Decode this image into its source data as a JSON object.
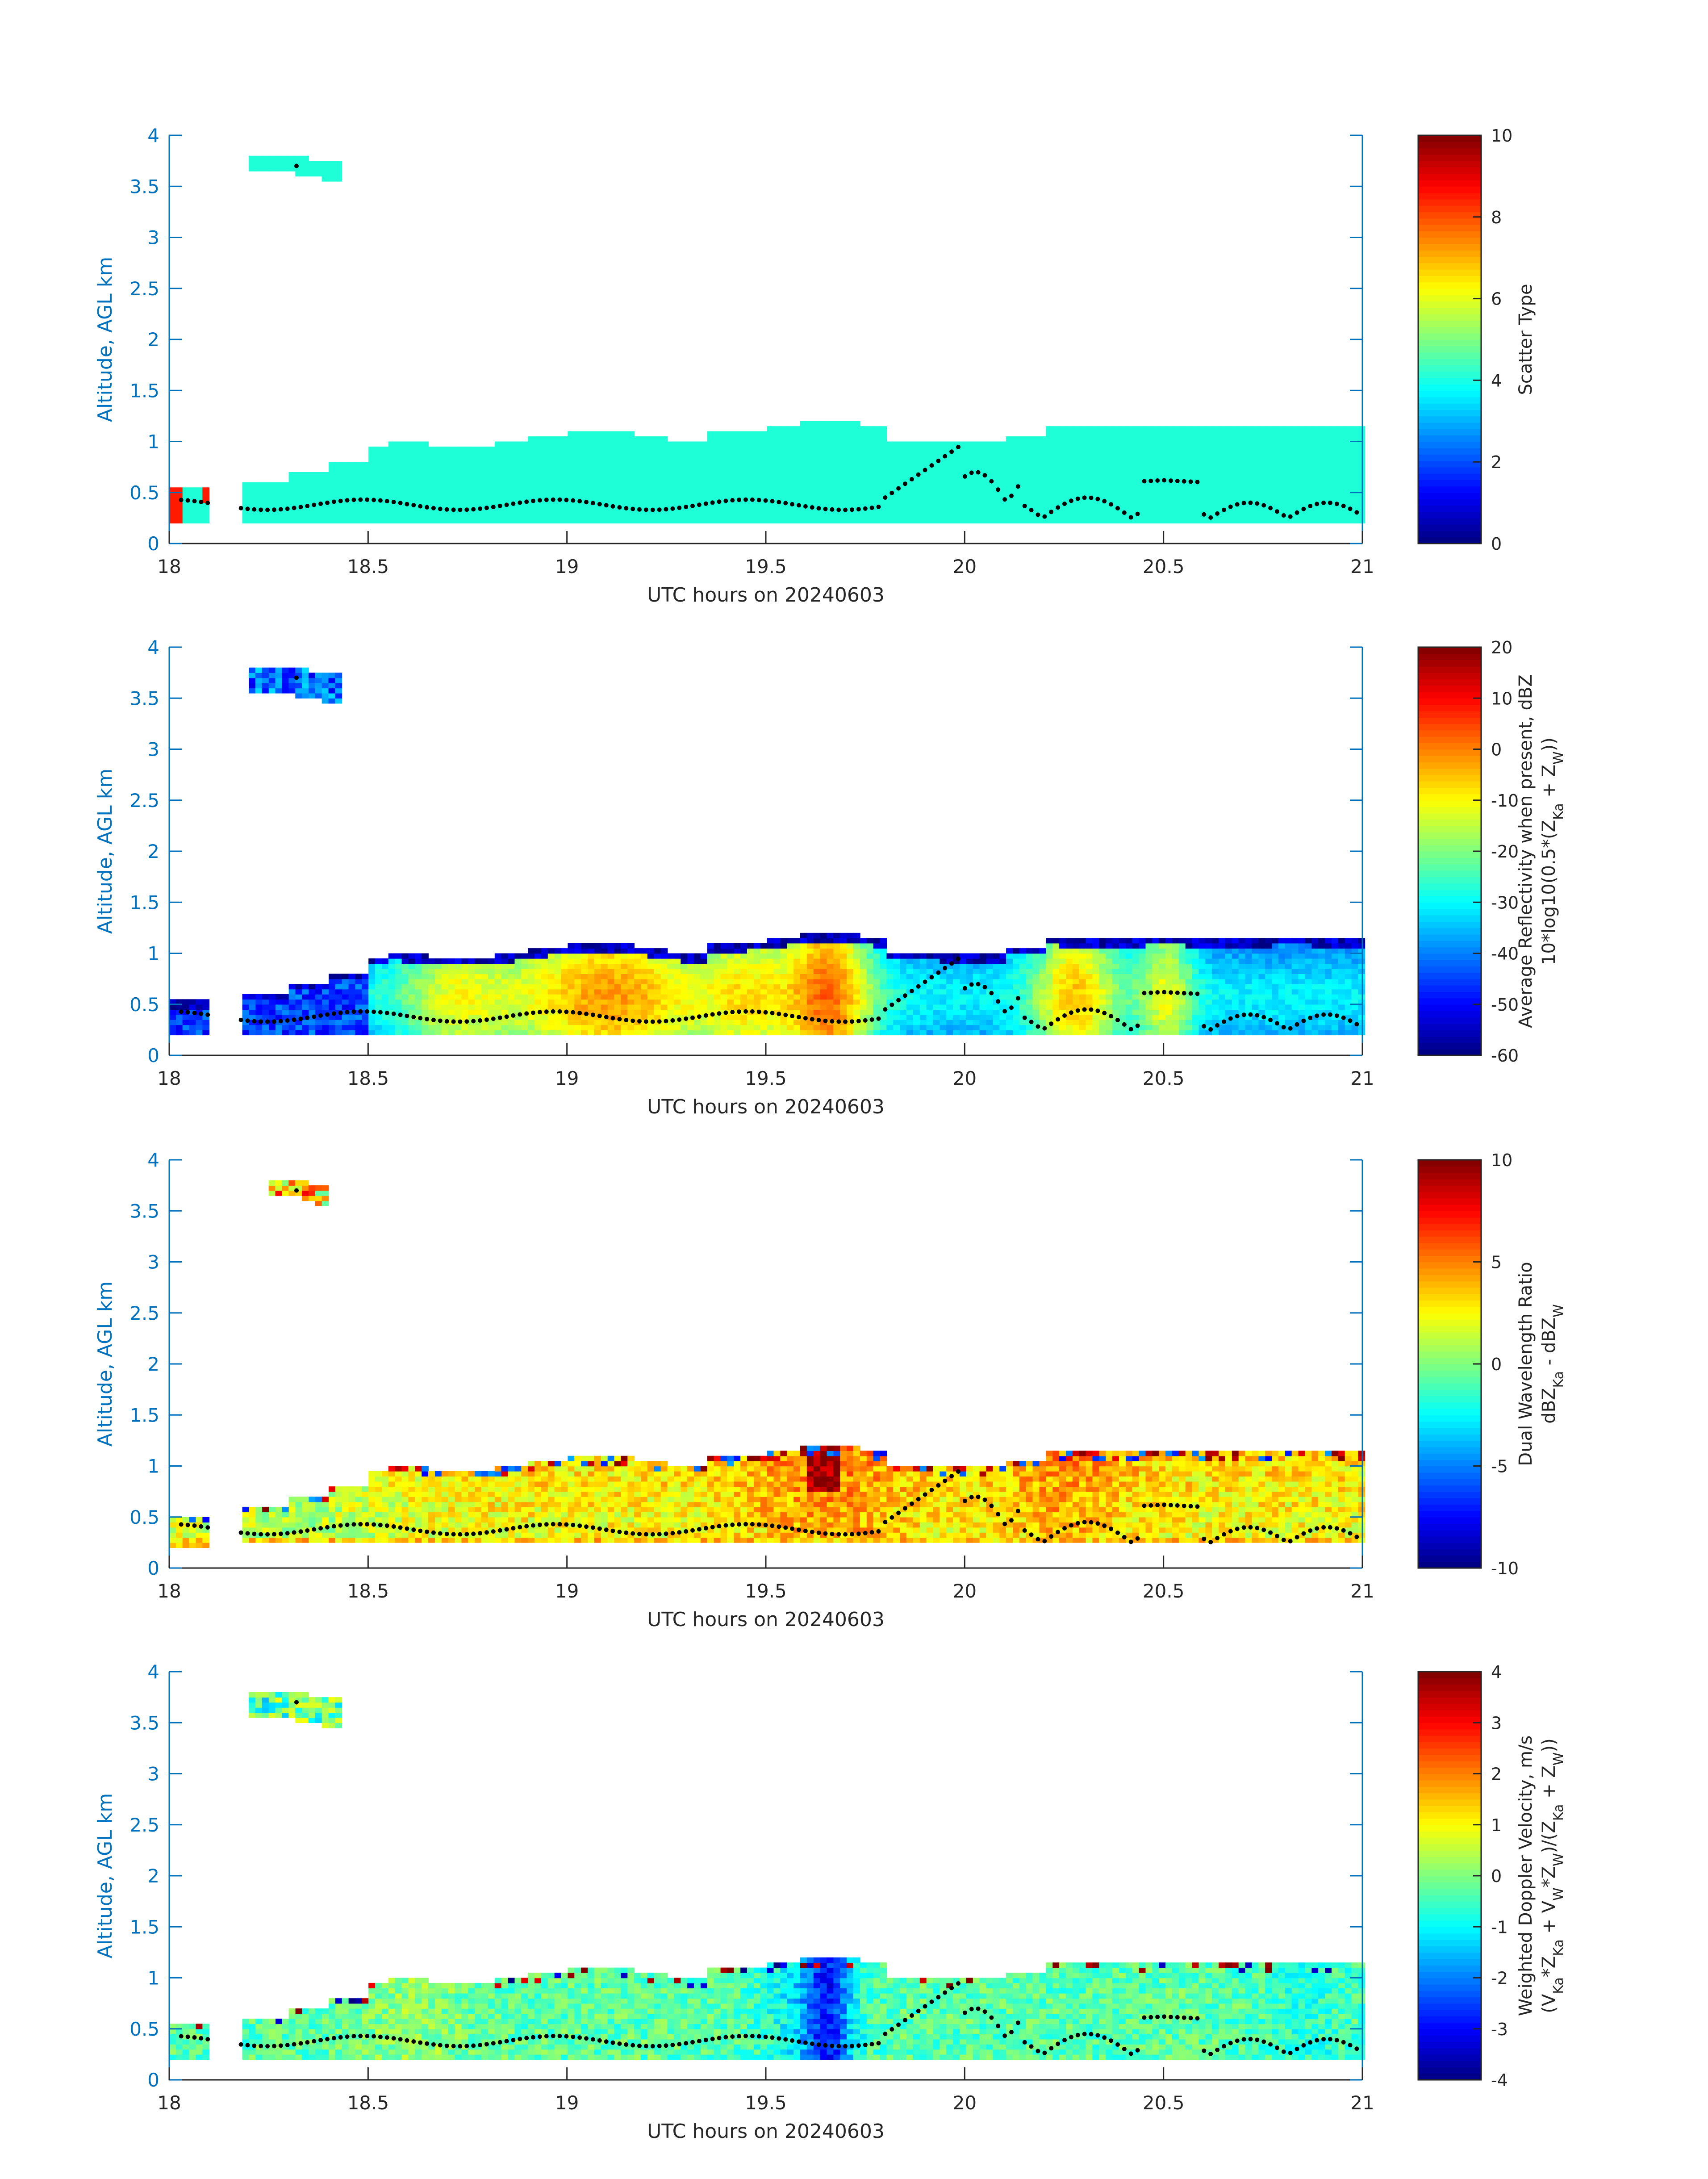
{
  "colors": {
    "axis_color": "#0072BD",
    "cloud_cyan": "#1EFFD7",
    "dot_color": "#000000",
    "colormap": "jet"
  },
  "chart_data": [
    {
      "type": "heatmap",
      "title": "",
      "xlabel": "UTC hours on 20240603",
      "ylabel": "Altitude, AGL km",
      "xlim": [
        18,
        21
      ],
      "ylim": [
        0,
        4
      ],
      "xticks": [
        "18",
        "18.5",
        "19",
        "19.5",
        "20",
        "20.5",
        "21"
      ],
      "yticks": [
        "0",
        "0.5",
        "1",
        "1.5",
        "2",
        "2.5",
        "3",
        "3.5",
        "4"
      ],
      "colorbar": {
        "label_lines": [
          "Scatter Type"
        ],
        "clim": [
          0,
          10
        ],
        "ticks": [
          "0",
          "2",
          "4",
          "6",
          "8",
          "10"
        ]
      },
      "field": "scatter_type",
      "cloud_top_km": [
        1.13,
        1.15,
        1.12,
        1.1
      ],
      "upper_layer": {
        "x_start": 18.2,
        "x_end": 18.43,
        "bottom_km": 3.55,
        "top_km": 3.75
      },
      "edge_patch": {
        "x_start": 18.0,
        "x_end": 18.1,
        "value": 8.5
      }
    },
    {
      "type": "heatmap",
      "title": "",
      "xlabel": "UTC hours on 20240603",
      "ylabel": "Altitude, AGL km",
      "xlim": [
        18,
        21
      ],
      "ylim": [
        0,
        4
      ],
      "xticks": [
        "18",
        "18.5",
        "19",
        "19.5",
        "20",
        "20.5",
        "21"
      ],
      "yticks": [
        "0",
        "0.5",
        "1",
        "1.5",
        "2",
        "2.5",
        "3",
        "3.5",
        "4"
      ],
      "colorbar": {
        "label_lines": [
          "Average Reflectivity when present, dBZ",
          "10*log10(0.5*(Z_Ka + Z_W))"
        ],
        "clim": [
          -60,
          20
        ],
        "ticks": [
          "-60",
          "-50",
          "-40",
          "-30",
          "-20",
          "-10",
          "0",
          "10",
          "20"
        ]
      },
      "field": "reflectivity",
      "peak_hours": [
        19.1,
        19.65,
        20.27,
        20.5
      ],
      "upper_layer": {
        "x_start": 18.2,
        "x_end": 18.43,
        "bottom_km": 3.45,
        "top_km": 3.75
      }
    },
    {
      "type": "heatmap",
      "title": "",
      "xlabel": "UTC hours on 20240603",
      "ylabel": "Altitude, AGL km",
      "xlim": [
        18,
        21
      ],
      "ylim": [
        0,
        4
      ],
      "xticks": [
        "18",
        "18.5",
        "19",
        "19.5",
        "20",
        "20.5",
        "21"
      ],
      "yticks": [
        "0",
        "0.5",
        "1",
        "1.5",
        "2",
        "2.5",
        "3",
        "3.5",
        "4"
      ],
      "colorbar": {
        "label_lines": [
          "Dual Wavelength Ratio",
          "dBZ_Ka - dBZ_W"
        ],
        "clim": [
          -10,
          10
        ],
        "ticks": [
          "-10",
          "-5",
          "0",
          "5",
          "10"
        ]
      },
      "field": "dwr",
      "upper_layer": {
        "x_start": 18.25,
        "x_end": 18.4,
        "bottom_km": 3.55,
        "top_km": 3.75
      }
    },
    {
      "type": "heatmap",
      "title": "",
      "xlabel": "UTC hours on 20240603",
      "ylabel": "Altitude, AGL km",
      "xlim": [
        18,
        21
      ],
      "ylim": [
        0,
        4
      ],
      "xticks": [
        "18",
        "18.5",
        "19",
        "19.5",
        "20",
        "20.5",
        "21"
      ],
      "yticks": [
        "0",
        "0.5",
        "1",
        "1.5",
        "2",
        "2.5",
        "3",
        "3.5",
        "4"
      ],
      "colorbar": {
        "label_lines": [
          "Weighted Doppler Velocity, m/s",
          "(V_Ka*Z_Ka + V_W*Z_W)/(Z_Ka + Z_W))"
        ],
        "clim": [
          -4,
          4
        ],
        "ticks": [
          "-4",
          "-3",
          "-2",
          "-1",
          "0",
          "1",
          "2",
          "3",
          "4"
        ]
      },
      "field": "velocity",
      "updraft_hour": 19.65,
      "upper_layer": {
        "x_start": 18.2,
        "x_end": 18.43,
        "bottom_km": 3.45,
        "top_km": 3.75
      }
    }
  ]
}
